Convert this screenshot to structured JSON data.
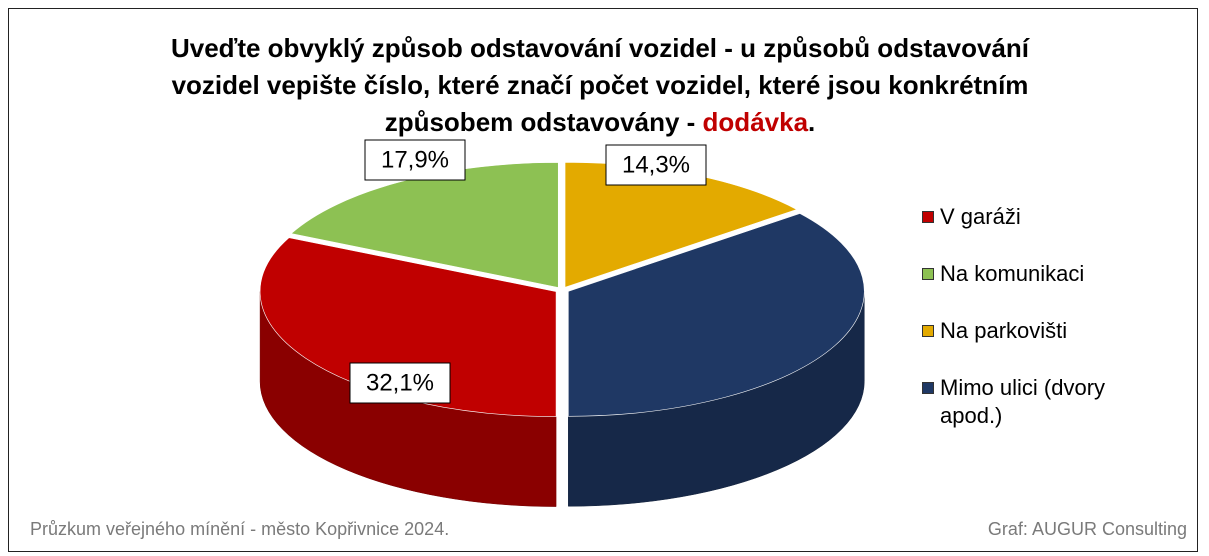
{
  "chart_data": {
    "type": "pie",
    "title": "Uveďte obvyklý způsob odstavování vozidel - u způsobů odstavování vozidel vepište číslo, které značí počet vozidel, které jsou konkrétním způsobem odstavovány - ",
    "title_highlight": "dodávka",
    "title_end": ".",
    "categories": [
      "V garáži",
      "Na komunikaci",
      "Na parkovišti",
      "Mimo ulici (dvory apod.)"
    ],
    "values": [
      32.1,
      17.9,
      14.3,
      35.7
    ],
    "value_labels": [
      "32,1%",
      "17,9%",
      "14,3%",
      null
    ],
    "colors": [
      "#c00000",
      "#8dc153",
      "#e3aa00",
      "#1f3864"
    ],
    "start_angle": 180,
    "legend": "right",
    "source": "Průzkum veřejného mínění - město Kopřivnice 2024.",
    "credit": "Graf: AUGUR Consulting"
  }
}
